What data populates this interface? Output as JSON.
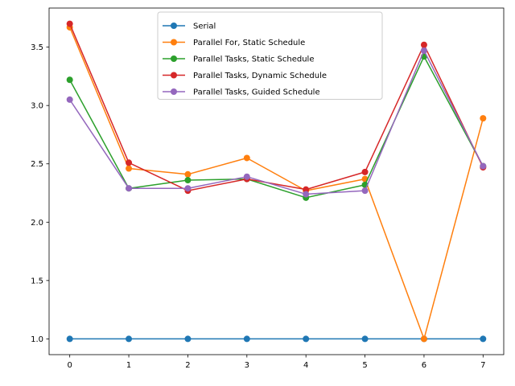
{
  "chart_data": {
    "type": "line",
    "title": "",
    "xlabel": "",
    "ylabel": "",
    "x": [
      0,
      1,
      2,
      3,
      4,
      5,
      6,
      7
    ],
    "xlim": [
      -0.35,
      7.35
    ],
    "ylim": [
      0.865,
      3.835
    ],
    "x_ticks": [
      "0",
      "1",
      "2",
      "3",
      "4",
      "5",
      "6",
      "7"
    ],
    "y_ticks": [
      "1.0",
      "1.5",
      "2.0",
      "2.5",
      "3.0",
      "3.5"
    ],
    "grid": false,
    "legend_position": "upper center",
    "series": [
      {
        "name": "Serial",
        "color": "#1f77b4",
        "values": [
          1.0,
          1.0,
          1.0,
          1.0,
          1.0,
          1.0,
          1.0,
          1.0
        ]
      },
      {
        "name": "Parallel For, Static Schedule",
        "color": "#ff7f0e",
        "values": [
          3.67,
          2.46,
          2.41,
          2.55,
          2.27,
          2.37,
          1.0,
          2.89
        ]
      },
      {
        "name": "Parallel Tasks, Static Schedule",
        "color": "#2ca02c",
        "values": [
          3.22,
          2.29,
          2.36,
          2.37,
          2.21,
          2.32,
          3.42,
          2.48
        ]
      },
      {
        "name": "Parallel Tasks, Dynamic Schedule",
        "color": "#d62728",
        "values": [
          3.7,
          2.51,
          2.27,
          2.37,
          2.28,
          2.43,
          3.52,
          2.47
        ]
      },
      {
        "name": "Parallel Tasks, Guided Schedule",
        "color": "#9467bd",
        "values": [
          3.05,
          2.29,
          2.29,
          2.39,
          2.24,
          2.27,
          3.47,
          2.48
        ]
      }
    ]
  }
}
